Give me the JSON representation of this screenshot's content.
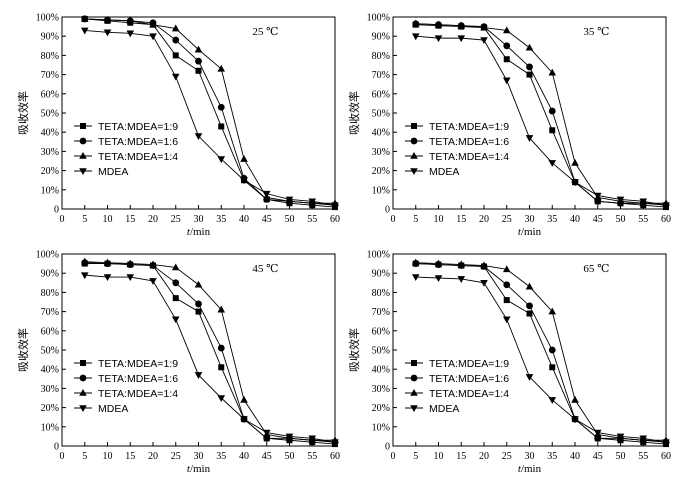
{
  "chart_data": [
    {
      "type": "line",
      "title": "25 ℃",
      "xlabel": {
        "var": "t",
        "unit": "/min"
      },
      "ylabel": "吸收效率",
      "x": [
        5,
        10,
        15,
        20,
        25,
        30,
        35,
        40,
        45,
        50,
        55,
        60
      ],
      "xlim": [
        0,
        60
      ],
      "ylim": [
        0,
        100
      ],
      "xticks": [
        "0",
        "5",
        "10",
        "15",
        "20",
        "25",
        "30",
        "35",
        "40",
        "45",
        "50",
        "55",
        "60"
      ],
      "yticks": [
        "0",
        "10%",
        "20%",
        "30%",
        "40%",
        "50%",
        "60%",
        "70%",
        "80%",
        "90%",
        "100%"
      ],
      "legend_position": "lower-left",
      "series": [
        {
          "name": "TETA:MDEA=1:9",
          "marker": "square",
          "values": [
            99,
            98,
            97,
            96,
            80,
            72,
            43,
            15,
            5,
            3,
            2,
            1
          ]
        },
        {
          "name": "TETA:MDEA=1:6",
          "marker": "circle",
          "values": [
            99,
            98.5,
            98,
            97,
            88,
            77,
            53,
            16,
            5,
            4,
            3,
            2
          ]
        },
        {
          "name": "TETA:MDEA=1:4",
          "marker": "triangle-up",
          "values": [
            99,
            98.5,
            98,
            96,
            94,
            83,
            73,
            26,
            6,
            4,
            3,
            3
          ]
        },
        {
          "name": "MDEA",
          "marker": "triangle-down",
          "values": [
            93,
            92,
            91.5,
            90,
            69,
            38,
            26,
            15,
            8,
            5,
            4,
            2
          ]
        }
      ]
    },
    {
      "type": "line",
      "title": "35 ℃",
      "xlabel": {
        "var": "t",
        "unit": "/min"
      },
      "ylabel": "吸收效率",
      "x": [
        5,
        10,
        15,
        20,
        25,
        30,
        35,
        40,
        45,
        50,
        55,
        60
      ],
      "xlim": [
        0,
        60
      ],
      "ylim": [
        0,
        100
      ],
      "xticks": [
        "0",
        "5",
        "10",
        "15",
        "20",
        "25",
        "30",
        "35",
        "40",
        "45",
        "50",
        "55",
        "60"
      ],
      "yticks": [
        "0",
        "10%",
        "20%",
        "30%",
        "40%",
        "50%",
        "60%",
        "70%",
        "80%",
        "90%",
        "100%"
      ],
      "legend_position": "lower-left",
      "series": [
        {
          "name": "TETA:MDEA=1:9",
          "marker": "square",
          "values": [
            96,
            95.5,
            95,
            94.5,
            78,
            70,
            41,
            14,
            4,
            3,
            2,
            1
          ]
        },
        {
          "name": "TETA:MDEA=1:6",
          "marker": "circle",
          "values": [
            96.5,
            96,
            95.5,
            95,
            85,
            74,
            51,
            14,
            4,
            3,
            3,
            2
          ]
        },
        {
          "name": "TETA:MDEA=1:4",
          "marker": "triangle-up",
          "values": [
            96.5,
            96,
            95.5,
            94.5,
            93,
            84,
            71,
            24,
            6,
            4,
            3,
            3
          ]
        },
        {
          "name": "MDEA",
          "marker": "triangle-down",
          "values": [
            90,
            89,
            89,
            88,
            67,
            37,
            24,
            14,
            7,
            5,
            4,
            2
          ]
        }
      ]
    },
    {
      "type": "line",
      "title": "45 ℃",
      "xlabel": {
        "var": "t",
        "unit": "/min"
      },
      "ylabel": "吸收效率",
      "x": [
        5,
        10,
        15,
        20,
        25,
        30,
        35,
        40,
        45,
        50,
        55,
        60
      ],
      "xlim": [
        0,
        60
      ],
      "ylim": [
        0,
        100
      ],
      "xticks": [
        "0",
        "5",
        "10",
        "15",
        "20",
        "25",
        "30",
        "35",
        "40",
        "45",
        "50",
        "55",
        "60"
      ],
      "yticks": [
        "0",
        "10%",
        "20%",
        "30%",
        "40%",
        "50%",
        "60%",
        "70%",
        "80%",
        "90%",
        "100%"
      ],
      "legend_position": "lower-left",
      "series": [
        {
          "name": "TETA:MDEA=1:9",
          "marker": "square",
          "values": [
            95,
            95,
            94.5,
            94,
            77,
            70,
            41,
            14,
            4,
            3,
            2,
            1
          ]
        },
        {
          "name": "TETA:MDEA=1:6",
          "marker": "circle",
          "values": [
            95.5,
            95,
            94.5,
            94,
            85,
            74,
            51,
            14,
            4,
            4,
            3,
            2
          ]
        },
        {
          "name": "TETA:MDEA=1:4",
          "marker": "triangle-up",
          "values": [
            96,
            95.5,
            95,
            94.5,
            93,
            84,
            71,
            24,
            6,
            4,
            3,
            3
          ]
        },
        {
          "name": "MDEA",
          "marker": "triangle-down",
          "values": [
            89,
            88,
            88,
            86,
            66,
            37,
            25,
            14,
            7,
            5,
            4,
            2
          ]
        }
      ]
    },
    {
      "type": "line",
      "title": "65 ℃",
      "xlabel": {
        "var": "t",
        "unit": "/min"
      },
      "ylabel": "吸收效率",
      "x": [
        5,
        10,
        15,
        20,
        25,
        30,
        35,
        40,
        45,
        50,
        55,
        60
      ],
      "xlim": [
        0,
        60
      ],
      "ylim": [
        0,
        100
      ],
      "xticks": [
        "0",
        "5",
        "10",
        "15",
        "20",
        "25",
        "30",
        "35",
        "40",
        "45",
        "50",
        "55",
        "60"
      ],
      "yticks": [
        "0",
        "10%",
        "20%",
        "30%",
        "40%",
        "50%",
        "60%",
        "70%",
        "80%",
        "90%",
        "100%"
      ],
      "legend_position": "lower-left",
      "series": [
        {
          "name": "TETA:MDEA=1:9",
          "marker": "square",
          "values": [
            95,
            94.5,
            94,
            93.5,
            76,
            69,
            41,
            14,
            4,
            3,
            2,
            1
          ]
        },
        {
          "name": "TETA:MDEA=1:6",
          "marker": "circle",
          "values": [
            95,
            94.5,
            94,
            93.5,
            84,
            73,
            50,
            14,
            4,
            4,
            3,
            2
          ]
        },
        {
          "name": "TETA:MDEA=1:4",
          "marker": "triangle-up",
          "values": [
            95.5,
            95,
            94.5,
            94,
            92,
            83,
            70,
            24,
            6,
            4,
            3,
            3
          ]
        },
        {
          "name": "MDEA",
          "marker": "triangle-down",
          "values": [
            88,
            87.5,
            87,
            85,
            66,
            36,
            24,
            14,
            7,
            5,
            4,
            2
          ]
        }
      ]
    }
  ]
}
